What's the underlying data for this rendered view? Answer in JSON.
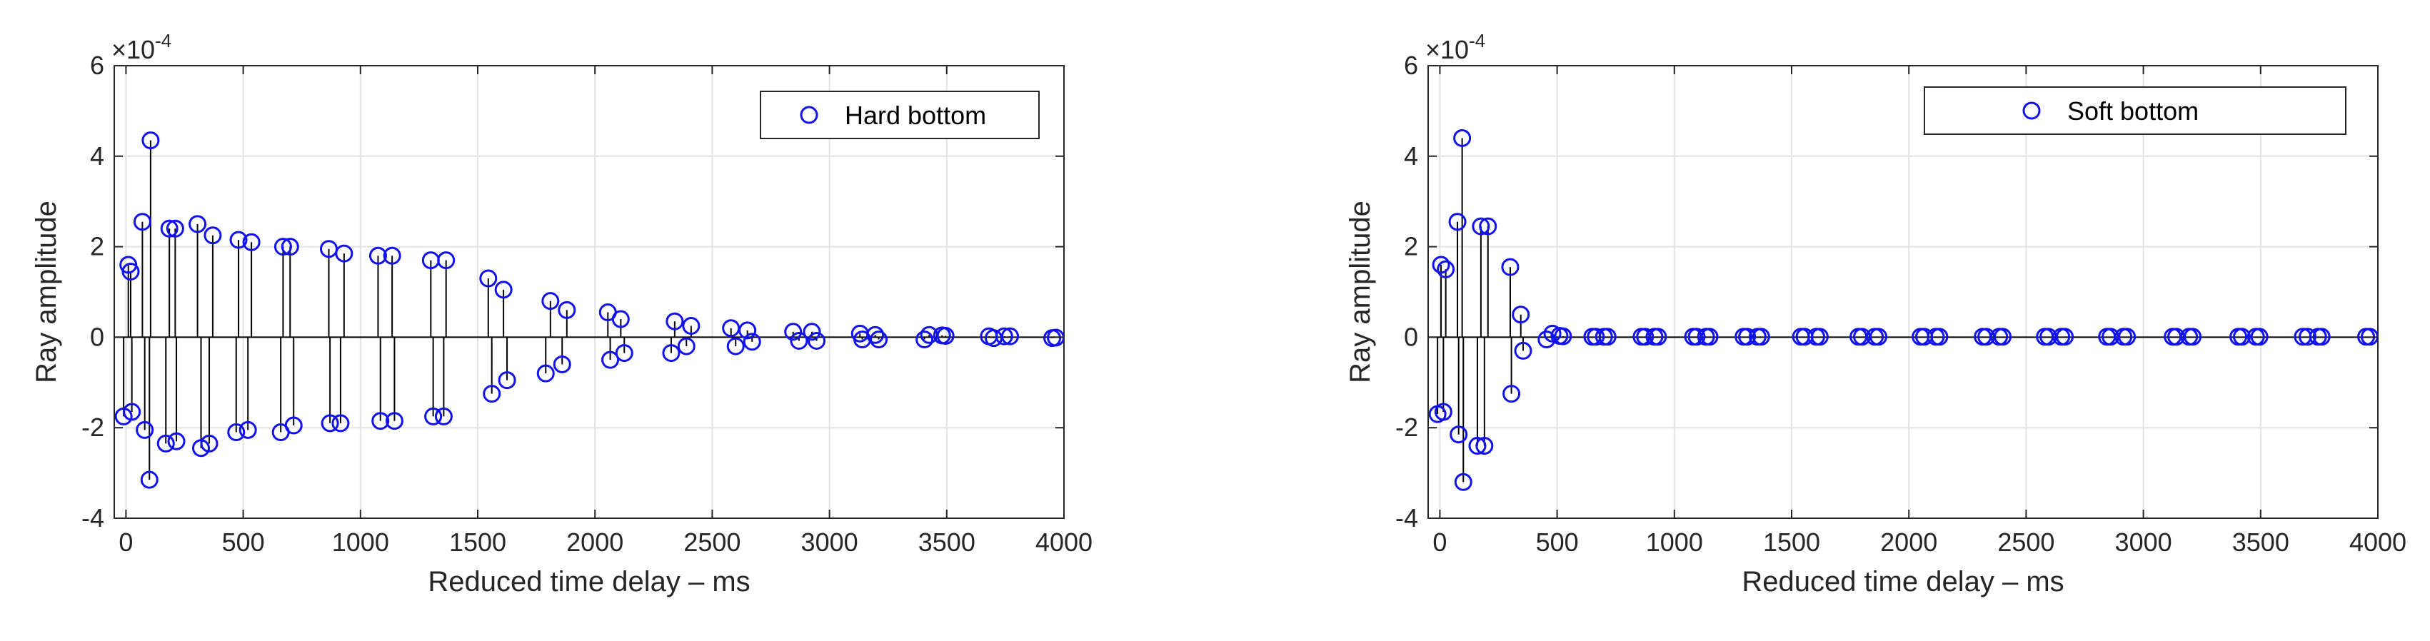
{
  "chart_data": [
    {
      "type": "stem",
      "title": "",
      "xlabel": "Reduced time delay – ms",
      "ylabel": "Ray amplitude",
      "xlim": [
        -50,
        4000
      ],
      "ylim": [
        -4,
        6
      ],
      "exponent_label": "×10",
      "exponent_power": "-4",
      "xticks": [
        "0",
        "500",
        "1000",
        "1500",
        "2000",
        "2500",
        "3000",
        "3500",
        "4000"
      ],
      "yticks": [
        "-4",
        "-2",
        "0",
        "2",
        "4",
        "6"
      ],
      "grid": true,
      "legend": {
        "label": "Hard bottom",
        "position": "top-right"
      },
      "marker_color": "#1111ee",
      "series": [
        {
          "x": [
            -10,
            10,
            20,
            25,
            70,
            80,
            100,
            105,
            170,
            185,
            210,
            215,
            305,
            320,
            355,
            370,
            470,
            480,
            520,
            535,
            660,
            670,
            700,
            715,
            865,
            870,
            915,
            930,
            1075,
            1085,
            1135,
            1145,
            1300,
            1310,
            1355,
            1365,
            1545,
            1560,
            1610,
            1625,
            1790,
            1810,
            1860,
            1880,
            2055,
            2065,
            2110,
            2125,
            2325,
            2340,
            2390,
            2410,
            2580,
            2600,
            2650,
            2670,
            2845,
            2870,
            2925,
            2945,
            3130,
            3140,
            3195,
            3210,
            3405,
            3425,
            3480,
            3495,
            3680,
            3700,
            3745,
            3770,
            3950,
            3965
          ],
          "y": [
            -1.75,
            1.6,
            1.45,
            -1.65,
            2.55,
            -2.05,
            -3.15,
            4.35,
            -2.35,
            2.4,
            2.4,
            -2.3,
            2.5,
            -2.45,
            -2.35,
            2.25,
            -2.1,
            2.15,
            -2.05,
            2.1,
            -2.1,
            2.0,
            2.0,
            -1.95,
            1.95,
            -1.9,
            -1.9,
            1.85,
            1.8,
            -1.85,
            1.8,
            -1.85,
            1.7,
            -1.75,
            -1.75,
            1.7,
            1.3,
            -1.25,
            1.05,
            -0.95,
            -0.8,
            0.8,
            -0.6,
            0.6,
            0.55,
            -0.5,
            0.4,
            -0.35,
            -0.35,
            0.35,
            -0.2,
            0.25,
            0.2,
            -0.2,
            0.15,
            -0.1,
            0.12,
            -0.08,
            0.12,
            -0.08,
            0.08,
            -0.05,
            0.05,
            -0.05,
            -0.05,
            0.05,
            0.04,
            0.03,
            0.02,
            -0.02,
            0.02,
            0.02,
            -0.02,
            -0.01
          ]
        }
      ]
    },
    {
      "type": "stem",
      "title": "",
      "xlabel": "Reduced time delay – ms",
      "ylabel": "Ray amplitude",
      "xlim": [
        -50,
        4000
      ],
      "ylim": [
        -4,
        6
      ],
      "exponent_label": "×10",
      "exponent_power": "-4",
      "xticks": [
        "0",
        "500",
        "1000",
        "1500",
        "2000",
        "2500",
        "3000",
        "3500",
        "4000"
      ],
      "yticks": [
        "-4",
        "-2",
        "0",
        "2",
        "4",
        "6"
      ],
      "grid": true,
      "legend": {
        "label": "Soft bottom",
        "position": "top-right"
      },
      "marker_color": "#1111ee",
      "series": [
        {
          "x": [
            -10,
            5,
            15,
            25,
            75,
            80,
            95,
            100,
            160,
            175,
            190,
            205,
            300,
            305,
            345,
            355,
            455,
            480,
            510,
            525,
            650,
            665,
            700,
            715,
            860,
            875,
            915,
            930,
            1080,
            1095,
            1135,
            1150,
            1295,
            1310,
            1355,
            1370,
            1540,
            1555,
            1605,
            1620,
            1785,
            1800,
            1855,
            1870,
            2050,
            2065,
            2115,
            2130,
            2315,
            2330,
            2385,
            2400,
            2580,
            2595,
            2650,
            2665,
            2845,
            2860,
            2915,
            2930,
            3125,
            3140,
            3195,
            3210,
            3405,
            3420,
            3480,
            3495,
            3680,
            3700,
            3745,
            3760,
            3950,
            3965
          ],
          "y": [
            -1.7,
            1.6,
            -1.65,
            1.5,
            2.55,
            -2.15,
            4.4,
            -3.2,
            -2.4,
            2.45,
            -2.4,
            2.45,
            1.55,
            -1.25,
            0.5,
            -0.3,
            -0.05,
            0.08,
            0.03,
            0.02,
            0.01,
            0.01,
            0.01,
            0.01,
            0.01,
            0.01,
            0.01,
            0.01,
            0.01,
            0.01,
            0.01,
            0.01,
            0.01,
            0.01,
            0.01,
            0.01,
            0.01,
            0.01,
            0.01,
            0.01,
            0.01,
            0.01,
            0.01,
            0.01,
            0.01,
            0.01,
            0.01,
            0.01,
            0.01,
            0.01,
            0.01,
            0.01,
            0.01,
            0.01,
            0.01,
            0.01,
            0.01,
            0.01,
            0.01,
            0.01,
            0.01,
            0.01,
            0.01,
            0.01,
            0.01,
            0.01,
            0.01,
            0.01,
            0.01,
            0.01,
            0.01,
            0.01,
            0.01,
            0.01
          ]
        }
      ]
    }
  ]
}
